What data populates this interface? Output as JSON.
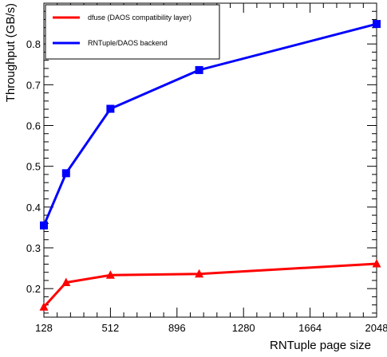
{
  "chart_data": {
    "type": "line",
    "xlabel": "RNTuple page size",
    "ylabel": "Throughput (GB/s)",
    "xlim": [
      128,
      2048
    ],
    "ylim": [
      0.13,
      0.9
    ],
    "x_ticks": [
      128,
      512,
      896,
      1280,
      1664,
      2048
    ],
    "x_tick_labels": [
      "128",
      "512",
      "896",
      "1280",
      "1664",
      "2048"
    ],
    "y_ticks": [
      0.2,
      0.3,
      0.4,
      0.5,
      0.6,
      0.7,
      0.8
    ],
    "y_tick_labels": [
      "0.2",
      "0.3",
      "0.4",
      "0.5",
      "0.6",
      "0.7",
      "0.8"
    ],
    "grid": false,
    "legend_position": "top-left",
    "series": [
      {
        "name": "dfuse (DAOS compatibility layer)",
        "color": "#ff0000",
        "marker": "triangle",
        "x": [
          128,
          256,
          512,
          1024,
          2048
        ],
        "y": [
          0.155,
          0.215,
          0.233,
          0.236,
          0.261
        ]
      },
      {
        "name": "RNTuple/DAOS backend",
        "color": "#0000ff",
        "marker": "square",
        "x": [
          128,
          256,
          512,
          1024,
          2048
        ],
        "y": [
          0.355,
          0.483,
          0.641,
          0.736,
          0.849
        ]
      }
    ]
  }
}
